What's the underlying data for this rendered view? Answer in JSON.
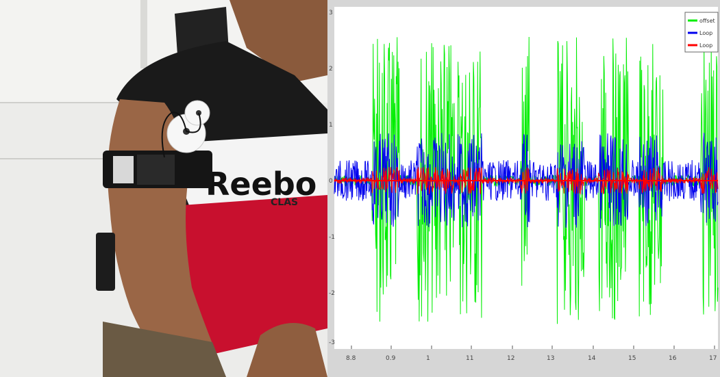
{
  "photo": {
    "shirt_brand": "Reebo",
    "shirt_sub": "CLAS"
  },
  "plot": {
    "legend": [
      "offset",
      "Loop",
      "Loop"
    ],
    "x_ticks": [
      "8.8",
      "0.9",
      "1",
      "11",
      "12",
      "13",
      "14",
      "15",
      "16",
      "17"
    ],
    "y_ticks": [
      "3",
      "2",
      "1",
      "0",
      "-1",
      "-2",
      "-3"
    ],
    "colors": {
      "green": "#00ee00",
      "blue": "#0000ee",
      "red": "#ff0000"
    }
  }
}
